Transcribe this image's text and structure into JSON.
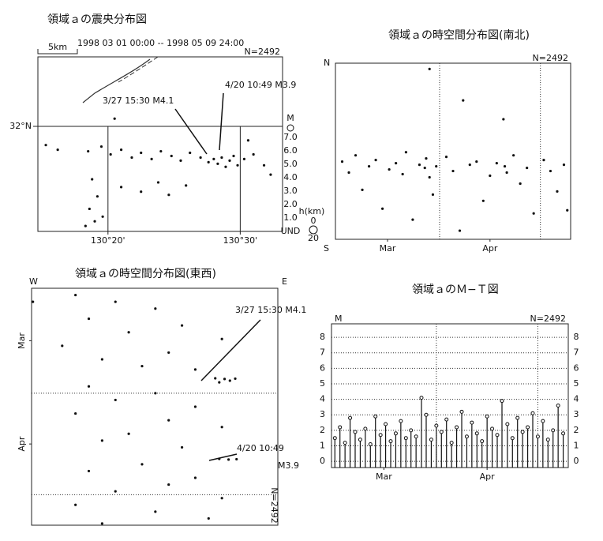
{
  "chart_data": [
    {
      "type": "scatter",
      "title": "領域ａの震央分布図",
      "subtitle": "1998 03 01 00:00 -- 1998 05 09 24:00",
      "count_label": "N=2492",
      "scale_label": "5km",
      "xlim": [
        14.7,
        33.2
      ],
      "xticks": [
        {
          "value": 20,
          "label": "130°20'"
        },
        {
          "value": 30,
          "label": "130°30'"
        }
      ],
      "ylim": [
        -6.75,
        4.47
      ],
      "yticks": [
        {
          "value": 0,
          "label": "32°N"
        }
      ],
      "annotations": [
        "3/27 15:30 M4.1",
        "4/20 10:49 M3.9"
      ],
      "magnitude_legend": {
        "title": "M",
        "labels": [
          "7.0",
          "6.0",
          "5.0",
          "4.0",
          "3.0",
          "2.0",
          "1.0",
          "UND"
        ]
      },
      "depth_legend": {
        "title": "h(km)",
        "labels": [
          0,
          20
        ]
      },
      "color": "#111",
      "x": [
        19.5,
        20.2,
        21,
        21.8,
        22.5,
        23.3,
        24,
        24.8,
        25.5,
        26.2,
        27,
        27.6,
        28,
        28.3,
        28.6,
        28.9,
        29.2,
        29.5,
        29.8,
        30.3,
        31,
        31.8,
        18.5,
        18.8,
        19.2,
        18.6,
        19.0,
        18.3,
        19.6,
        21,
        22.5,
        23.8,
        24.6,
        25.9,
        15.3,
        16.2,
        20.5,
        30.6,
        32.3
      ],
      "y": [
        -1.3,
        -1.8,
        -1.5,
        -2.0,
        -1.7,
        -2.1,
        -1.6,
        -1.9,
        -2.2,
        -1.7,
        -2.0,
        -2.3,
        -2.1,
        -2.4,
        -2.0,
        -2.6,
        -2.2,
        -1.9,
        -2.5,
        -2.1,
        -1.8,
        -2.5,
        -1.6,
        -3.4,
        -4.5,
        -5.3,
        -6.1,
        -6.4,
        -5.8,
        -3.9,
        -4.2,
        -3.6,
        -4.4,
        -3.8,
        -1.2,
        -1.5,
        0.5,
        -0.9,
        -3.1
      ]
    },
    {
      "type": "scatter",
      "title": "領域ａの時空間分布図(南北)",
      "count_label": "N=2492",
      "axis_end_labels": [
        "N",
        "S"
      ],
      "xlim": [
        0,
        70
      ],
      "xticks": [
        {
          "value": 15.5,
          "label": "Mar"
        },
        {
          "value": 46,
          "label": "Apr"
        }
      ],
      "month_lines": [
        31,
        61
      ],
      "ylim": [
        -6.75,
        4.47
      ],
      "color": "#111",
      "x": [
        2,
        4,
        6,
        8,
        10,
        12,
        14,
        16,
        18,
        20,
        21,
        23,
        25,
        26.6,
        27,
        28,
        29,
        30,
        33,
        35,
        37,
        38,
        40,
        42,
        44,
        46,
        48,
        50.4,
        51,
        53,
        55,
        57,
        59,
        62,
        64,
        66,
        68,
        69,
        50,
        28
      ],
      "y": [
        -1.8,
        -2.5,
        -1.4,
        -3.6,
        -2.1,
        -1.7,
        -4.8,
        -2.3,
        -1.9,
        -2.6,
        -1.2,
        -5.5,
        -2.0,
        -2.2,
        -1.6,
        -2.8,
        -3.9,
        -2.1,
        -1.5,
        -2.4,
        -6.2,
        2.1,
        -2.0,
        -1.8,
        -4.3,
        -2.7,
        -1.9,
        -2.1,
        -2.5,
        -1.4,
        -3.2,
        -2.2,
        -5.1,
        -1.7,
        -2.4,
        -3.7,
        -2.0,
        -4.9,
        0.9,
        4.1
      ]
    },
    {
      "type": "scatter",
      "title": "領域ａの時空間分布図(東西)",
      "count_label": "N=2492",
      "axis_end_labels": [
        "W",
        "E"
      ],
      "xlim": [
        14.7,
        33.2
      ],
      "ylim": [
        0,
        70
      ],
      "y_inverted": true,
      "yticks": [
        {
          "value": 15.5,
          "label": "Mar"
        },
        {
          "value": 46,
          "label": "Apr"
        }
      ],
      "month_lines": [
        31,
        61
      ],
      "annotations": [
        "3/27 15:30 M4.1",
        "4/20 10:49",
        "M3.9"
      ],
      "color": "#111",
      "x": [
        18,
        21,
        24,
        19,
        26,
        22,
        29,
        17,
        25,
        20,
        23,
        27,
        28.5,
        29.2,
        30,
        29.6,
        28.8,
        19,
        24,
        21,
        27,
        18,
        25,
        29,
        22,
        20,
        26,
        28.8,
        29.5,
        30.1,
        23,
        19,
        27,
        25,
        21,
        29,
        18,
        24,
        28,
        20,
        14.8
      ],
      "y": [
        2,
        4,
        6,
        9,
        11,
        13,
        15,
        17,
        19,
        21,
        23,
        24,
        26.6,
        26.8,
        26.7,
        27.3,
        27.8,
        29,
        31,
        33,
        35,
        37,
        39,
        41,
        43,
        45,
        47,
        50.4,
        50.6,
        50.5,
        52,
        54,
        56,
        58,
        60,
        62,
        64,
        66,
        68,
        69.5,
        4
      ]
    },
    {
      "type": "stem",
      "title": "領域ａのＭ−Ｔ図",
      "count_label": "N=2492",
      "y_label": "M",
      "xlim": [
        0,
        70
      ],
      "xticks": [
        {
          "value": 15.5,
          "label": "Mar"
        },
        {
          "value": 46,
          "label": "Apr"
        }
      ],
      "month_lines": [
        31,
        61
      ],
      "ylim": [
        -0.4,
        8.87
      ],
      "yticks": [
        0,
        1,
        2,
        3,
        4,
        5,
        6,
        7,
        8
      ],
      "grid": true,
      "color": "#111",
      "x": [
        1,
        2.5,
        4,
        5.5,
        7,
        8.5,
        10,
        11.5,
        13,
        14.5,
        16,
        17.5,
        19,
        20.5,
        22,
        23.5,
        25,
        26.6,
        28,
        29.5,
        31,
        32.5,
        34,
        35.5,
        37,
        38.5,
        40,
        41.5,
        43,
        44.5,
        46,
        47.5,
        49,
        50.4,
        52,
        53.5,
        55,
        56.5,
        58,
        59.5,
        61,
        62.5,
        64,
        65.5,
        67,
        68.5
      ],
      "values": [
        1.5,
        2.2,
        1.2,
        2.8,
        1.9,
        1.4,
        2.1,
        1.1,
        2.9,
        1.7,
        2.4,
        1.3,
        1.8,
        2.6,
        1.5,
        2.0,
        1.6,
        4.1,
        3.0,
        1.4,
        2.3,
        1.9,
        2.7,
        1.2,
        2.2,
        3.2,
        1.6,
        2.5,
        1.8,
        1.3,
        2.9,
        2.1,
        1.7,
        3.9,
        2.4,
        1.5,
        2.8,
        1.9,
        2.2,
        3.1,
        1.6,
        2.6,
        1.4,
        2.0,
        3.6,
        1.8
      ]
    }
  ]
}
